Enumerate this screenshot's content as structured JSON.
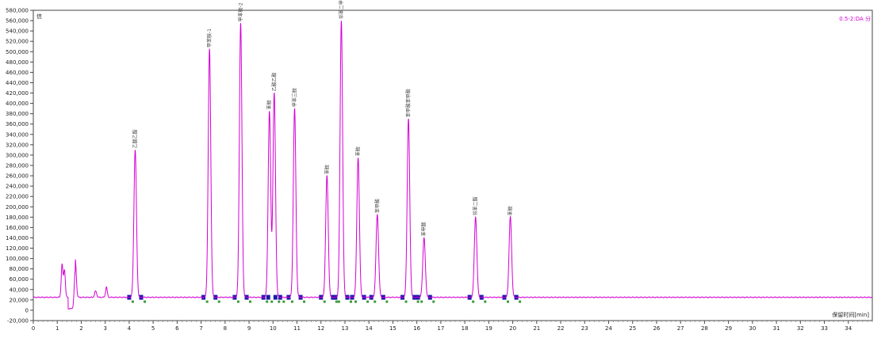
{
  "chart_data": {
    "type": "line",
    "legend": {
      "text": "0.5-2:DA 分",
      "placement": "top-right"
    },
    "corner_label": "信",
    "xlabel": "保留时间[min]",
    "ylabel": "",
    "xlim": [
      0,
      35
    ],
    "ylim": [
      -20000,
      580000
    ],
    "x_ticks": [
      0,
      1,
      2,
      3,
      4,
      5,
      6,
      7,
      8,
      9,
      10,
      11,
      12,
      13,
      14,
      15,
      16,
      17,
      18,
      19,
      20,
      21,
      22,
      23,
      24,
      25,
      26,
      27,
      28,
      29,
      30,
      31,
      32,
      33,
      34
    ],
    "x_tick_labels": [
      "0",
      "1",
      "2",
      "3",
      "4",
      "5",
      "6",
      "7",
      "8",
      "9",
      "10",
      "11",
      "12",
      "13",
      "14",
      "15",
      "16",
      "17",
      "18",
      "19",
      "20",
      "21",
      "22",
      "23",
      "24",
      "25",
      "26",
      "27",
      "28",
      "29",
      "30",
      "31",
      "32",
      "33",
      "34"
    ],
    "y_ticks": [
      -20000,
      0,
      20000,
      40000,
      60000,
      80000,
      100000,
      120000,
      140000,
      160000,
      180000,
      200000,
      220000,
      240000,
      260000,
      280000,
      300000,
      320000,
      340000,
      360000,
      380000,
      400000,
      420000,
      440000,
      460000,
      480000,
      500000,
      520000,
      540000,
      560000,
      580000
    ],
    "y_tick_labels": [
      "-20,000",
      "0",
      "20,000",
      "40,000",
      "60,000",
      "80,000",
      "100,000",
      "120,000",
      "140,000",
      "160,000",
      "180,000",
      "200,000",
      "220,000",
      "240,000",
      "260,000",
      "280,000",
      "300,000",
      "320,000",
      "340,000",
      "360,000",
      "380,000",
      "400,000",
      "420,000",
      "440,000",
      "460,000",
      "480,000",
      "500,000",
      "520,000",
      "540,000",
      "560,000",
      "580,000"
    ],
    "baseline": 25000,
    "baseline_noise": [
      [
        1.2,
        88000,
        0.05
      ],
      [
        1.3,
        78000,
        0.05
      ],
      [
        1.75,
        98000,
        0.06
      ],
      [
        2.6,
        37000,
        0.06
      ],
      [
        3.05,
        45000,
        0.05
      ]
    ],
    "dip": {
      "start": 1.45,
      "end": 1.75,
      "value": 3000
    },
    "series": [
      {
        "name": "0.5-2:DA 分",
        "color": "#d400d4",
        "peaks": [
          {
            "x": 4.25,
            "y": 310000,
            "label": "乙酸乙酯"
          },
          {
            "x": 7.35,
            "y": 505000,
            "label": "甲苯胺-1"
          },
          {
            "x": 8.65,
            "y": 555000,
            "label": "甲苯胺-2"
          },
          {
            "x": 9.85,
            "y": 385000,
            "label": "苯胺"
          },
          {
            "x": 10.05,
            "y": 420000,
            "label": "乙酸乙酯"
          },
          {
            "x": 10.9,
            "y": 390000,
            "label": "甲苯三胺"
          },
          {
            "x": 12.25,
            "y": 260000,
            "label": "苯胺"
          },
          {
            "x": 12.85,
            "y": 560000,
            "label": "邻苯二甲酸二丁酯"
          },
          {
            "x": 13.55,
            "y": 295000,
            "label": "苯胺"
          },
          {
            "x": 14.35,
            "y": 185000,
            "label": "苯甲酸"
          },
          {
            "x": 15.65,
            "y": 370000,
            "label": "苯甲酸苯甲酯"
          },
          {
            "x": 16.3,
            "y": 140000,
            "label": "苯甲酸"
          },
          {
            "x": 18.45,
            "y": 180000,
            "label": "邻苯二酯"
          },
          {
            "x": 19.9,
            "y": 180000,
            "label": "苯胺"
          }
        ]
      }
    ]
  }
}
